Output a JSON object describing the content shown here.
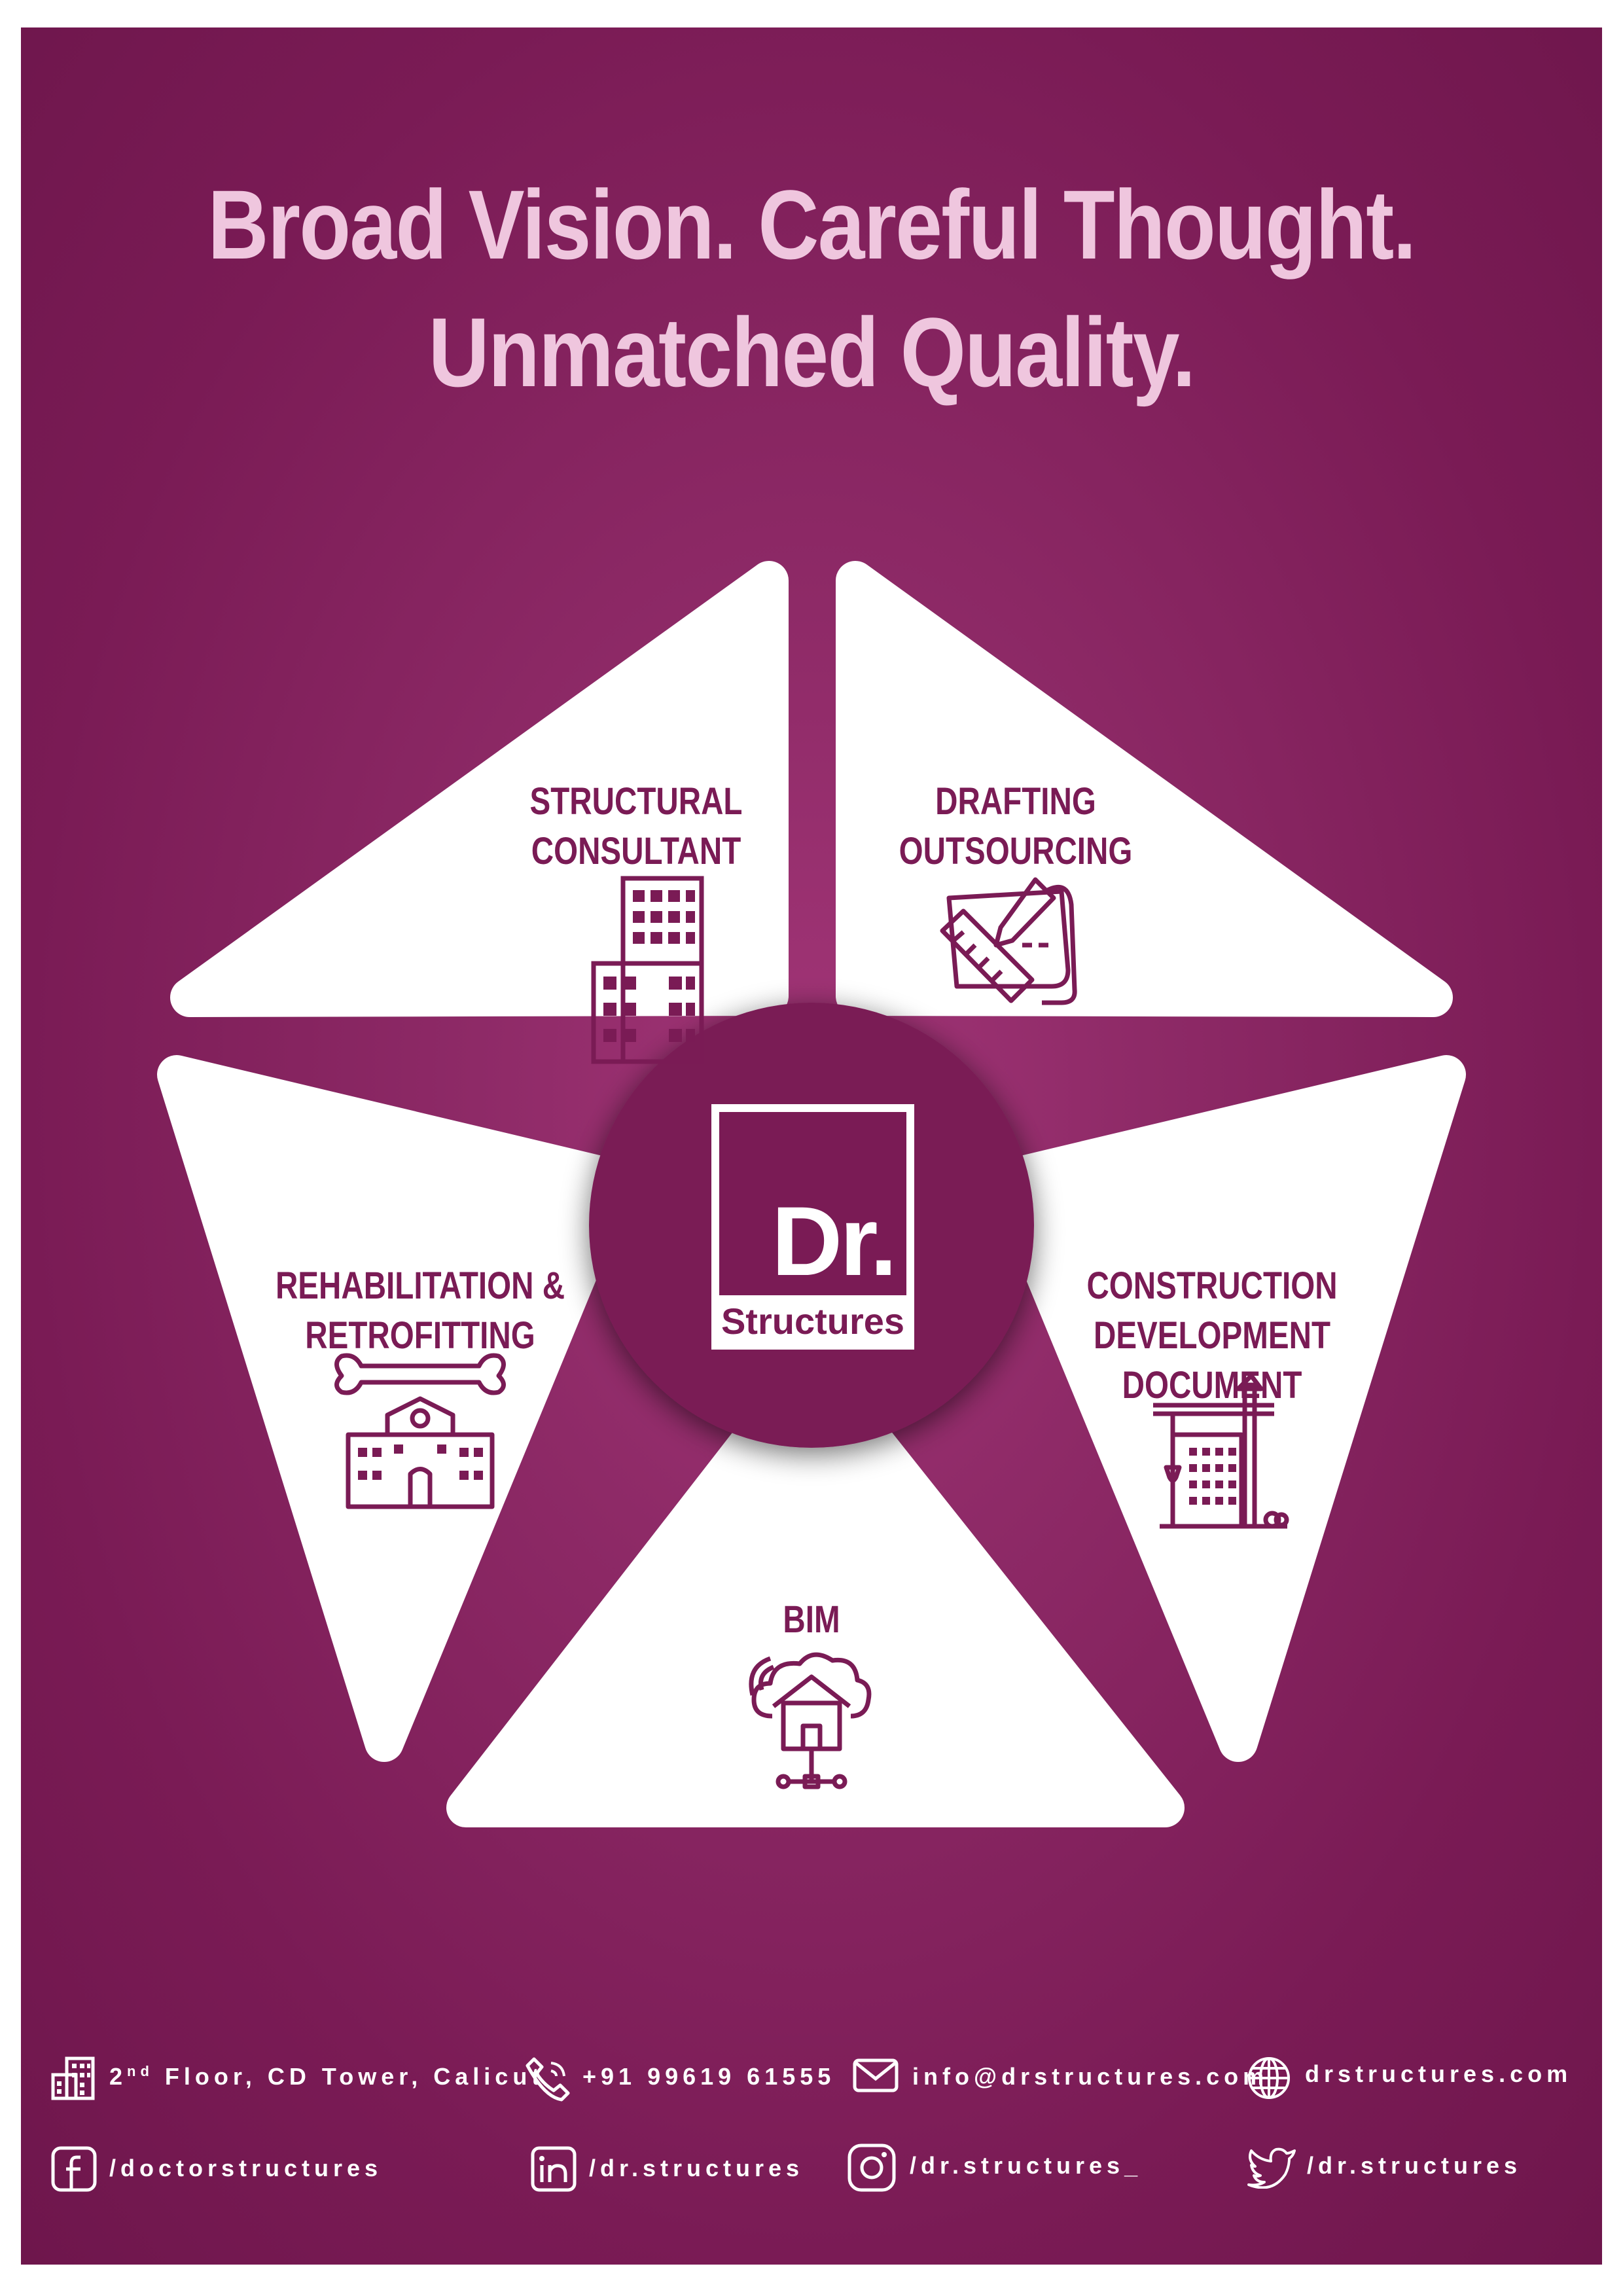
{
  "headline": {
    "line1": "Broad Vision. Careful Thought.",
    "line2": "Unmatched Quality."
  },
  "logo": {
    "mark": "Dr.",
    "name": "Structures"
  },
  "services": [
    {
      "line1": "STRUCTURAL",
      "line2": "CONSULTANT",
      "icon": "office-building-icon"
    },
    {
      "line1": "DRAFTING",
      "line2": "OUTSOURCING",
      "icon": "drafting-ruler-pencil-icon"
    },
    {
      "line1": "CONSTRUCTION",
      "line2": "DEVELOPMENT",
      "line3": "DOCUMENT",
      "icon": "construction-crane-icon"
    },
    {
      "line1": "BIM",
      "icon": "bim-cloud-house-icon"
    },
    {
      "line1": "REHABILITATION &",
      "line2": "RETROFITTING",
      "icon": "wrench-building-icon"
    }
  ],
  "contact": {
    "address_prefix": "2",
    "address_sup": "nd",
    "address_rest": " Floor, CD Tower, Calicut",
    "phone": "+91 99619 61555",
    "email": "info@drstructures.com",
    "website": "drstructures.com",
    "facebook": "/doctorstructures",
    "linkedin": "/dr.structures",
    "instagram": "/dr.structures_",
    "twitter": "/dr.structures"
  },
  "colors": {
    "brand": "#7a1b55",
    "headline": "#efc6de",
    "panel": "#ffffff"
  }
}
